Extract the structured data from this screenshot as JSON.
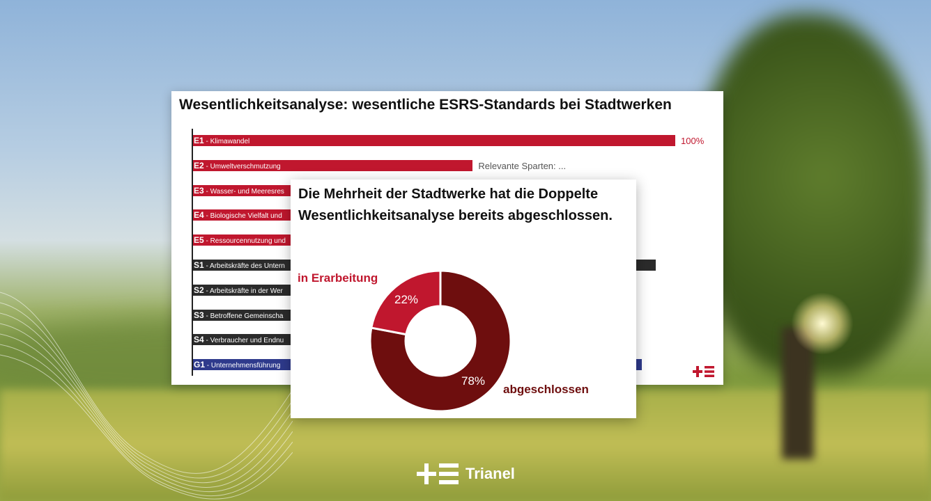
{
  "brand": {
    "name": "Trianel",
    "logo": "trianel-plus-e-logo"
  },
  "bar_chart": {
    "title": "Wesentlichkeitsanalyse: wesentliche ESRS-Standards bei Stadtwerken",
    "chart_data": {
      "type": "bar",
      "orientation": "horizontal",
      "title": "Wesentlichkeitsanalyse: wesentliche ESRS-Standards bei Stadtwerken",
      "categories": [
        {
          "code": "E1",
          "name": "Klimawandel",
          "value": 100,
          "value_label": "100%",
          "color": "#c0172e",
          "label_visible": true
        },
        {
          "code": "E2",
          "name": "Umweltverschmutzung",
          "value": 58,
          "value_label": "Relevante Sparten: ...",
          "color": "#c0172e",
          "label_visible": true
        },
        {
          "code": "E3",
          "name": "Wasser- und Meeresres",
          "value": null,
          "color": "#c0172e",
          "label_visible": false
        },
        {
          "code": "E4",
          "name": "Biologische Vielfalt und",
          "value": null,
          "color": "#c0172e",
          "label_visible": false
        },
        {
          "code": "E5",
          "name": "Ressourcennutzung und",
          "value": null,
          "color": "#c0172e",
          "label_visible": false
        },
        {
          "code": "S1",
          "name": "Arbeitskräfte des Untern",
          "value": 96,
          "color": "#2b2b2b",
          "label_visible": false
        },
        {
          "code": "S2",
          "name": "Arbeitskräfte in der Wer",
          "value": null,
          "color": "#2b2b2b",
          "label_visible": false
        },
        {
          "code": "S3",
          "name": "Betroffene Gemeinscha",
          "value": null,
          "color": "#2b2b2b",
          "label_visible": false
        },
        {
          "code": "S4",
          "name": "Verbraucher und Endnu",
          "value": null,
          "color": "#2b2b2b",
          "label_visible": false
        },
        {
          "code": "G1",
          "name": "Unternehmensführung",
          "value": 93,
          "color": "#2e3a8c",
          "label_visible": false
        }
      ],
      "xlim": [
        0,
        100
      ]
    }
  },
  "donut_chart": {
    "heading": "Die Mehrheit der Stadtwerke hat die Doppelte Wesentlichkeitsanalyse bereits abgeschlossen.",
    "chart_data": {
      "type": "pie",
      "style": "donut",
      "slices": [
        {
          "label": "abgeschlossen",
          "value": 78,
          "value_label": "78%",
          "color": "#6e0e0e"
        },
        {
          "label": "in Erarbeitung",
          "value": 22,
          "value_label": "22%",
          "color": "#c0172e"
        }
      ]
    }
  }
}
